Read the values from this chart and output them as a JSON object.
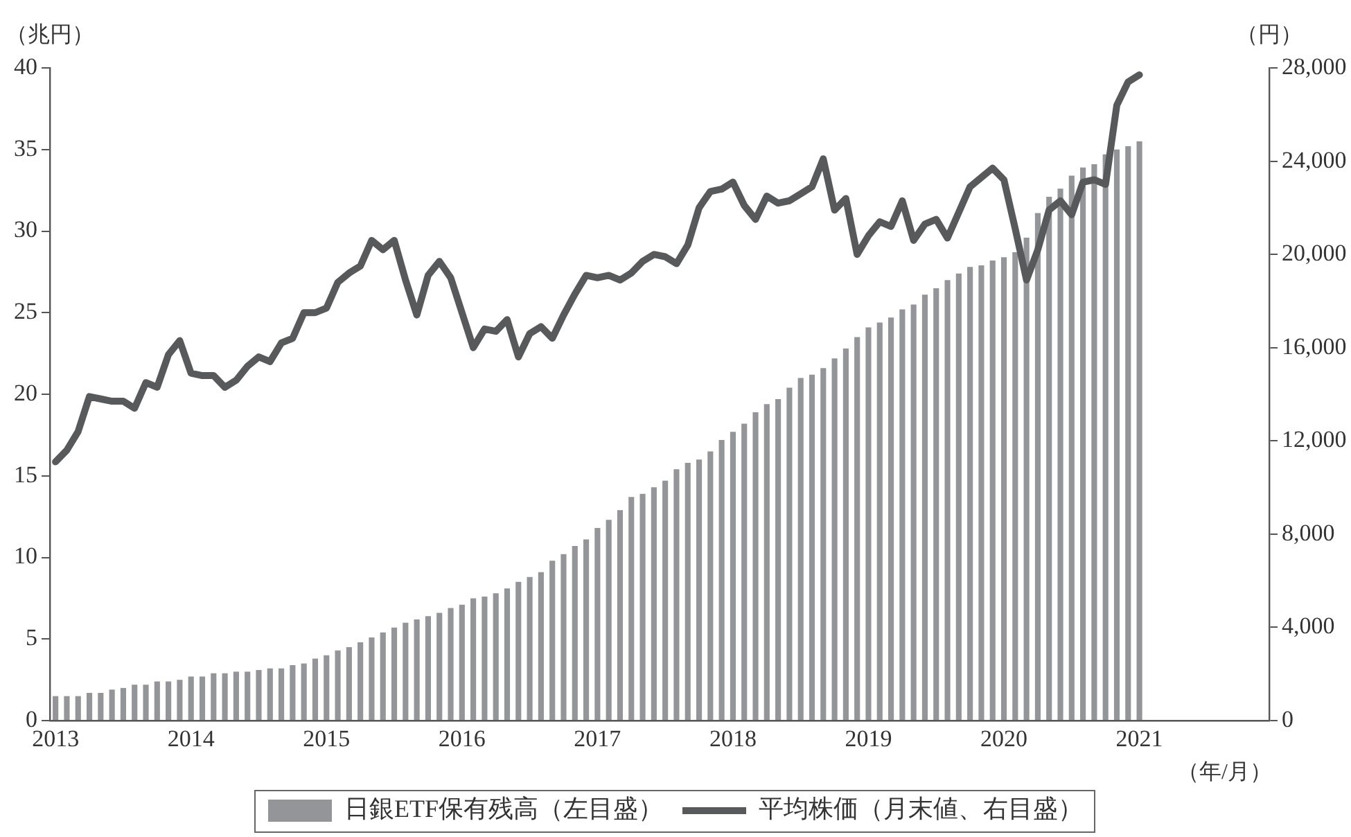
{
  "chart_data": {
    "type": "bar",
    "categories": [
      "2013",
      null,
      null,
      null,
      null,
      null,
      null,
      null,
      null,
      null,
      null,
      null,
      "2014",
      null,
      null,
      null,
      null,
      null,
      null,
      null,
      null,
      null,
      null,
      null,
      "2015",
      null,
      null,
      null,
      null,
      null,
      null,
      null,
      null,
      null,
      null,
      null,
      "2016",
      null,
      null,
      null,
      null,
      null,
      null,
      null,
      null,
      null,
      null,
      null,
      "2017",
      null,
      null,
      null,
      null,
      null,
      null,
      null,
      null,
      null,
      null,
      null,
      "2018",
      null,
      null,
      null,
      null,
      null,
      null,
      null,
      null,
      null,
      null,
      null,
      "2019",
      null,
      null,
      null,
      null,
      null,
      null,
      null,
      null,
      null,
      null,
      null,
      "2020",
      null,
      null,
      null,
      null,
      null,
      null,
      null,
      null,
      null,
      null,
      null,
      "2021",
      null,
      null,
      null,
      null,
      null,
      null,
      null,
      null,
      null,
      null,
      null
    ],
    "series": [
      {
        "name": "日銀ETF保有残高（左目盛）",
        "color": "#939598",
        "values": [
          1.5,
          1.5,
          1.5,
          1.7,
          1.7,
          1.9,
          2.0,
          2.2,
          2.2,
          2.4,
          2.4,
          2.5,
          2.7,
          2.7,
          2.9,
          2.9,
          3.0,
          3.0,
          3.1,
          3.2,
          3.2,
          3.4,
          3.5,
          3.8,
          4.0,
          4.3,
          4.5,
          4.8,
          5.1,
          5.4,
          5.7,
          6.0,
          6.2,
          6.4,
          6.6,
          6.9,
          7.1,
          7.5,
          7.6,
          7.8,
          8.1,
          8.5,
          8.8,
          9.1,
          9.8,
          10.2,
          10.7,
          11.1,
          11.8,
          12.3,
          12.9,
          13.7,
          13.9,
          14.3,
          14.7,
          15.4,
          15.8,
          16.0,
          16.5,
          17.2,
          17.7,
          18.2,
          18.9,
          19.4,
          19.7,
          20.4,
          21.0,
          21.2,
          21.6,
          22.2,
          22.8,
          23.5,
          24.1,
          24.4,
          24.7,
          25.2,
          25.5,
          26.1,
          26.5,
          27.0,
          27.4,
          27.8,
          27.9,
          28.2,
          28.4,
          28.7,
          29.6,
          31.1,
          32.1,
          32.6,
          33.4,
          33.9,
          34.1,
          34.7,
          35.0,
          35.2,
          35.5,
          null,
          null,
          null,
          null,
          null,
          null,
          null,
          null,
          null,
          null,
          null
        ]
      },
      {
        "name": "平均株価（月末値、右目盛）",
        "type": "line",
        "axis": "y2",
        "color": "#58595b",
        "values": [
          11100,
          11600,
          12400,
          13900,
          13800,
          13700,
          13700,
          13400,
          14500,
          14300,
          15700,
          16300,
          14900,
          14800,
          14800,
          14300,
          14600,
          15200,
          15600,
          15400,
          16200,
          16400,
          17500,
          17500,
          17700,
          18800,
          19200,
          19500,
          20600,
          20200,
          20600,
          18900,
          17400,
          19100,
          19700,
          19000,
          17500,
          16000,
          16800,
          16700,
          17200,
          15600,
          16600,
          16900,
          16400,
          17400,
          18300,
          19100,
          19000,
          19100,
          18900,
          19200,
          19700,
          20000,
          19900,
          19600,
          20400,
          22000,
          22700,
          22800,
          23100,
          22100,
          21500,
          22500,
          22200,
          22300,
          22600,
          22900,
          24100,
          21900,
          22400,
          20000,
          20800,
          21400,
          21200,
          22300,
          20600,
          21300,
          21500,
          20700,
          21800,
          22900,
          23300,
          23700,
          23200,
          21100,
          18900,
          20200,
          21900,
          22300,
          21700,
          23100,
          23200,
          23000,
          26400,
          27400,
          27700,
          null,
          null,
          null,
          null,
          null,
          null,
          null,
          null,
          null,
          null,
          null
        ]
      }
    ],
    "ylabel": "（兆円）",
    "y2label": "（円）",
    "xlabel": "（年/月）",
    "ylim": [
      0,
      40
    ],
    "yticks": [
      0,
      5,
      10,
      15,
      20,
      25,
      30,
      35,
      40
    ],
    "y2lim": [
      0,
      28000
    ],
    "y2ticks": [
      0,
      {
        "value": 4000,
        "label": "4,000"
      },
      {
        "value": 8000,
        "label": "8,000"
      },
      {
        "value": 12000,
        "label": "12,000"
      },
      {
        "value": 16000,
        "label": "16,000"
      },
      {
        "value": 20000,
        "label": "20,000"
      },
      {
        "value": 24000,
        "label": "24,000"
      },
      {
        "value": 28000,
        "label": "28,000"
      }
    ],
    "legend": "bottom",
    "marker": "none",
    "line_style": "solid",
    "grid": false
  }
}
